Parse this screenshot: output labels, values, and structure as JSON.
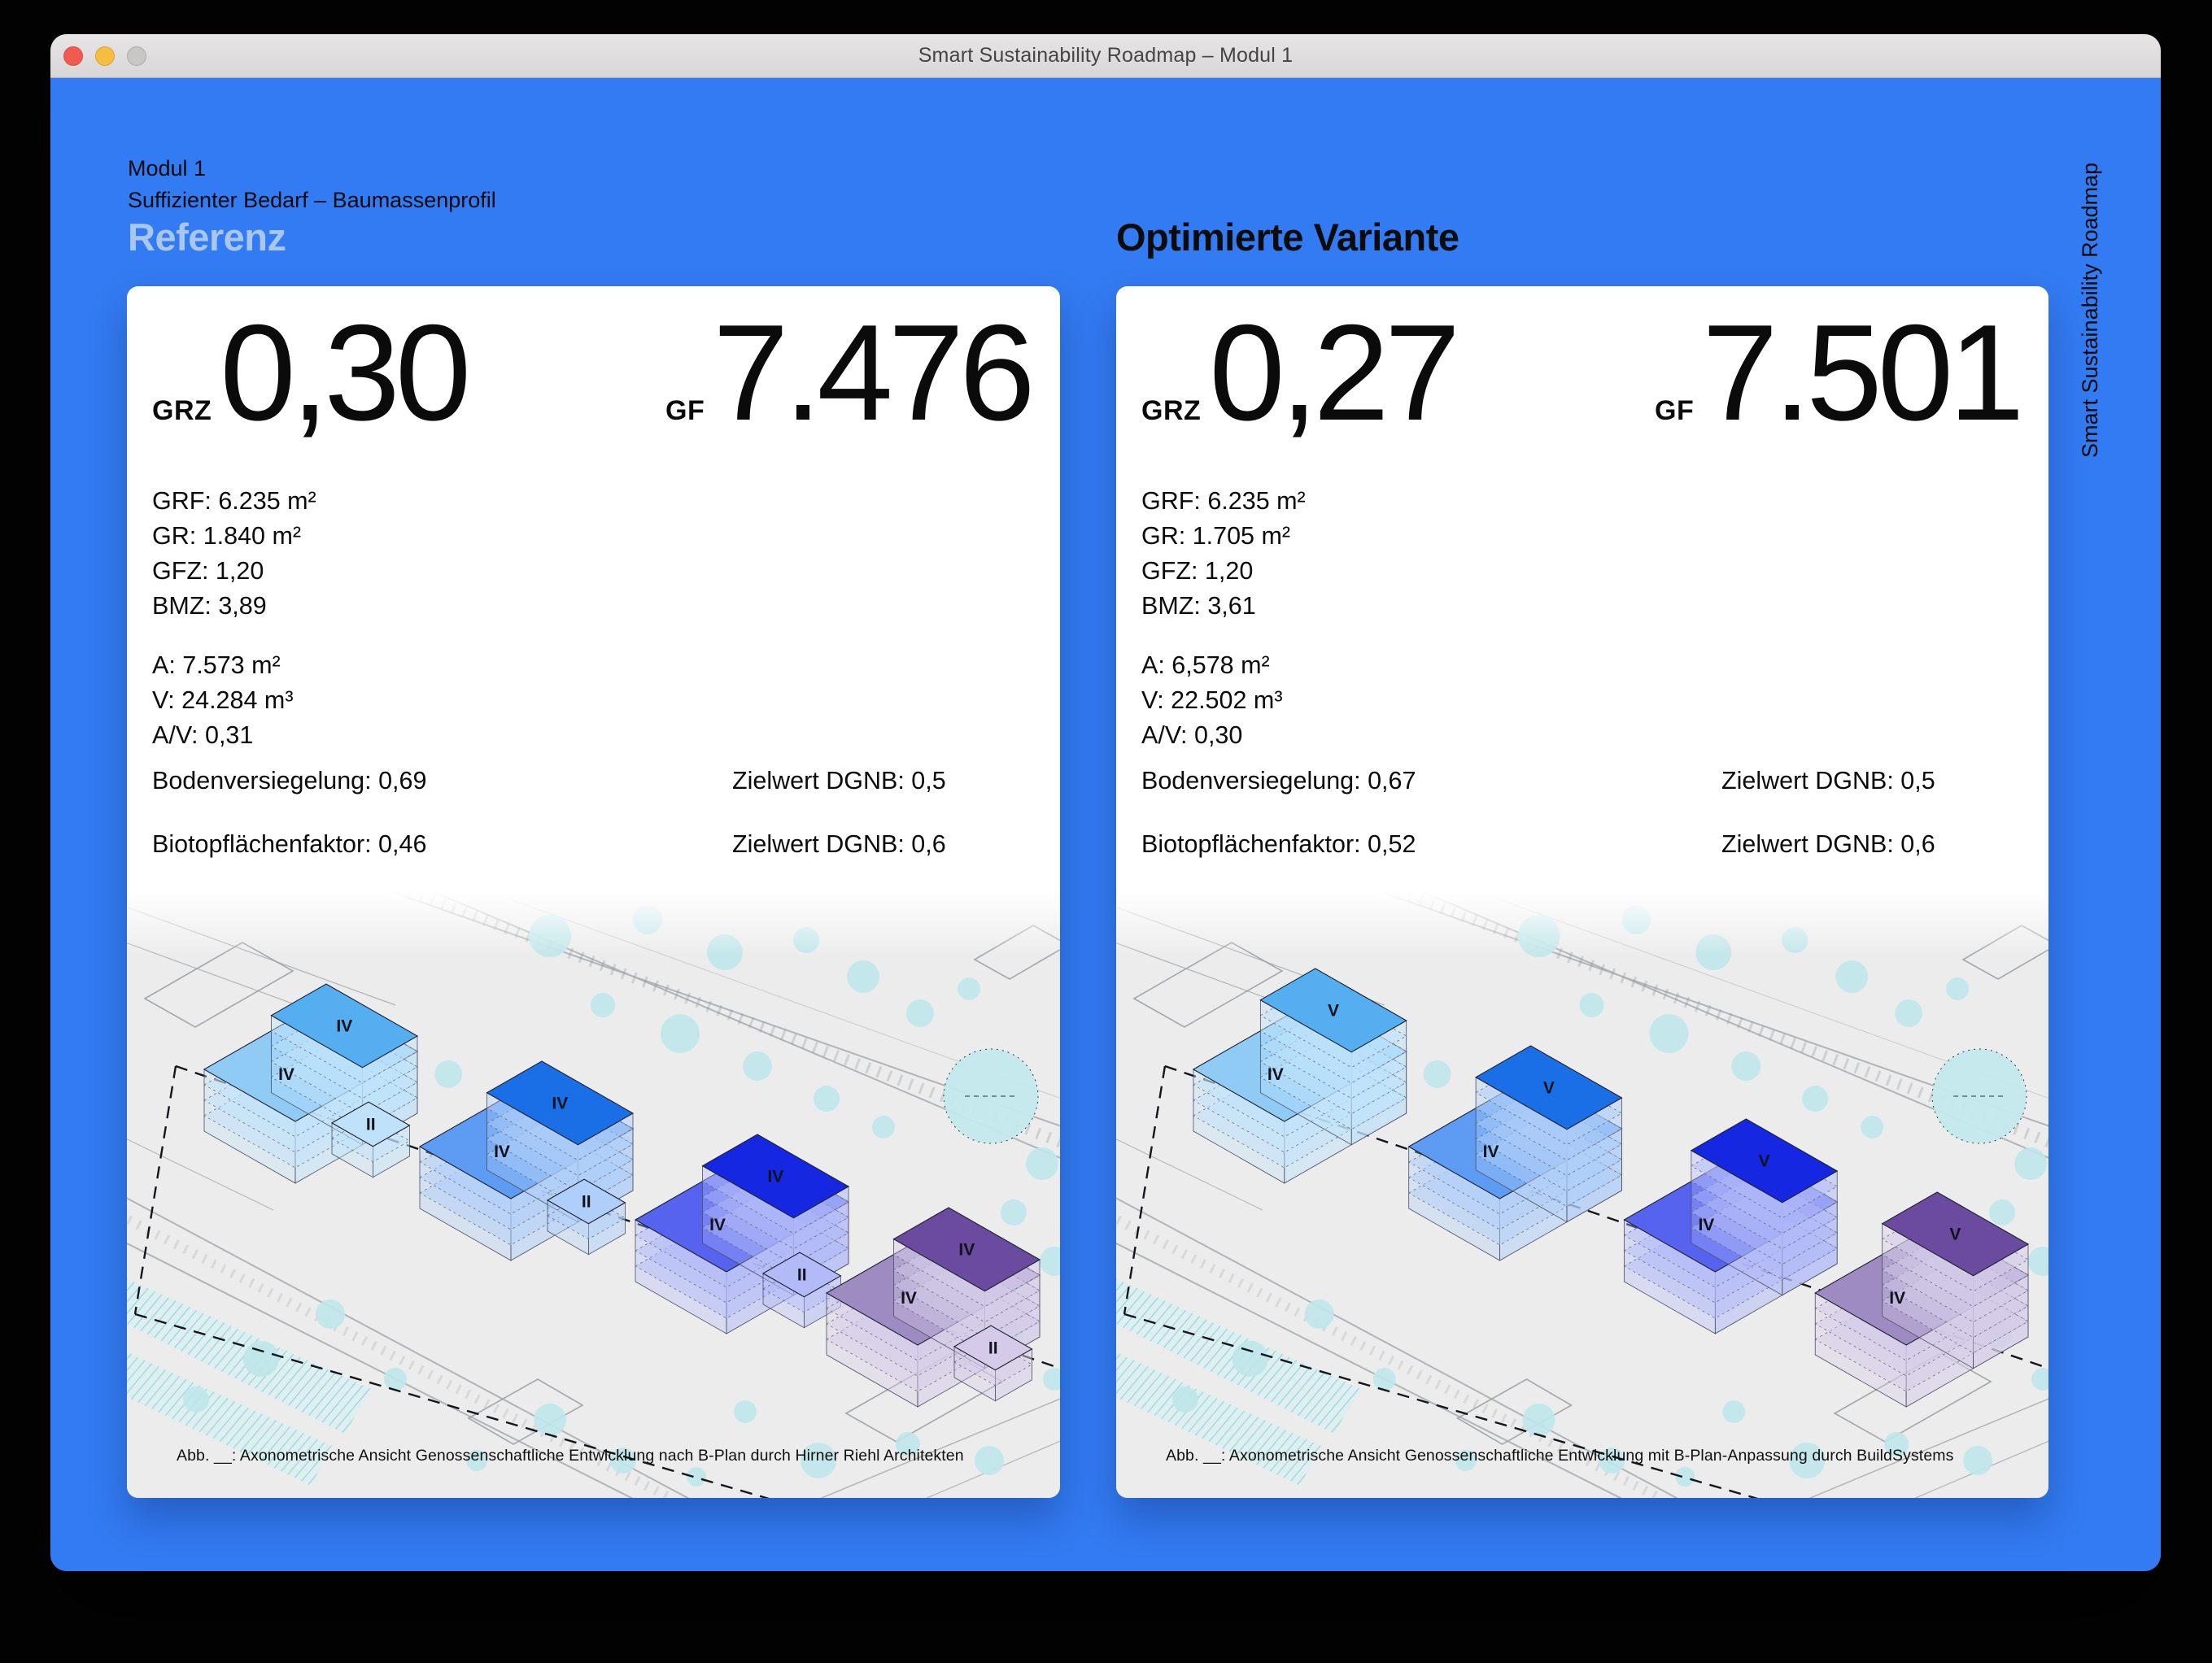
{
  "window": {
    "title": "Smart Sustainability Roadmap – Modul 1"
  },
  "titlebar_icons": {
    "close": "close-traffic-light",
    "minimize": "minimize-traffic-light",
    "zoom": "zoom-traffic-light"
  },
  "header": {
    "module": "Modul 1",
    "subtitle": "Suffizienter Bedarf – Baumassenprofil"
  },
  "vertical_label": "Smart Sustainability Roadmap",
  "cards": [
    {
      "heading": "Referenz",
      "grz_label": "GRZ",
      "grz_value": "0,30",
      "gf_label": "GF",
      "gf_value": "7.476",
      "details1": [
        "GRF: 6.235 m²",
        "GR: 1.840 m²",
        "GFZ: 1,20",
        "BMZ: 3,89"
      ],
      "details2": [
        "A: 7.573 m²",
        "V: 24.284 m³",
        "A/V: 0,31"
      ],
      "rows": [
        {
          "label": "Bodenversiegelung: 0,69",
          "target": "Zielwert DGNB: 0,5"
        },
        {
          "label": "Biotopflächenfaktor: 0,46",
          "target": "Zielwert DGNB: 0,6"
        }
      ],
      "caption": "Abb. __: Axonometrische Ansicht Genossenschaftliche Entwicklung nach B-Plan durch Hirner Riehl Architekten"
    },
    {
      "heading": "Optimierte Variante",
      "grz_label": "GRZ",
      "grz_value": "0,27",
      "gf_label": "GF",
      "gf_value": "7.501",
      "details1": [
        "GRF: 6.235 m²",
        "GR: 1.705 m²",
        "GFZ: 1,20",
        "BMZ: 3,61"
      ],
      "details2": [
        "A: 6,578 m²",
        "V: 22.502 m³",
        "A/V: 0,30"
      ],
      "rows": [
        {
          "label": "Bodenversiegelung: 0,67",
          "target": "Zielwert DGNB: 0,5"
        },
        {
          "label": "Biotopflächenfaktor: 0,52",
          "target": "Zielwert DGNB: 0,6"
        }
      ],
      "caption": "Abb. __: Axonometrische Ansicht Genossenschaftliche Entwicklung mit B-Plan-Anpassung durch BuildSystems"
    }
  ],
  "plans": {
    "left": {
      "tower_floors": 5,
      "buildings": [
        {
          "tower": "IV",
          "wing": "IV",
          "annex": "II"
        },
        {
          "tower": "IV",
          "wing": "IV",
          "annex": "II"
        },
        {
          "tower": "IV",
          "wing": "IV",
          "annex": "II"
        },
        {
          "tower": "IV",
          "wing": "IV",
          "annex": "II"
        }
      ]
    },
    "right": {
      "tower_floors": 6,
      "buildings": [
        {
          "tower": "V",
          "wing": "IV"
        },
        {
          "tower": "V",
          "wing": "IV"
        },
        {
          "tower": "V",
          "wing": "IV"
        },
        {
          "tower": "V",
          "wing": "IV"
        }
      ]
    }
  },
  "colors": {
    "background_blue": "#337BF2",
    "referenz_heading": "#A9C7EE",
    "card_background": "#FFFFFF",
    "titlebar": "#DCDADA",
    "traffic_lights": {
      "close": "#F25A50",
      "minimize": "#F6BD40",
      "zoom": "#C9C7C5"
    },
    "plan_background": "#ECECEC",
    "tree": "#BFE7EA",
    "buildings": [
      {
        "tower": "#55AEF0",
        "wing": "#90CBF6",
        "plate": "#BFE2FA"
      },
      {
        "tower": "#1B6FE6",
        "wing": "#5E9BF2",
        "plate": "#AFCEF9"
      },
      {
        "tower": "#1527E0",
        "wing": "#5563EE",
        "plate": "#B2BAF8"
      },
      {
        "tower": "#6A4B9F",
        "wing": "#9D8BC2",
        "plate": "#D5CBE8"
      }
    ]
  }
}
